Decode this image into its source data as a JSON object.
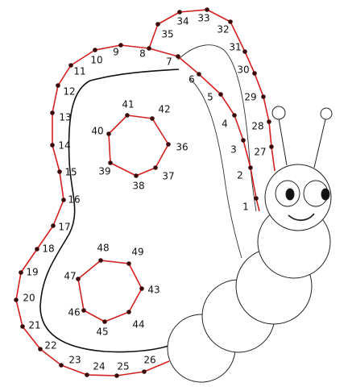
{
  "dots": {
    "labels": [
      1,
      2,
      3,
      4,
      5,
      6,
      7,
      8,
      9,
      10,
      11,
      12,
      13,
      14,
      15,
      16,
      17,
      18,
      19,
      20,
      21,
      22,
      23,
      24,
      25,
      26,
      27,
      28,
      29,
      30,
      31,
      32,
      33,
      34,
      35,
      36,
      37,
      38,
      39,
      40,
      41,
      42,
      43,
      44,
      45,
      46,
      47,
      48,
      49
    ]
  }
}
